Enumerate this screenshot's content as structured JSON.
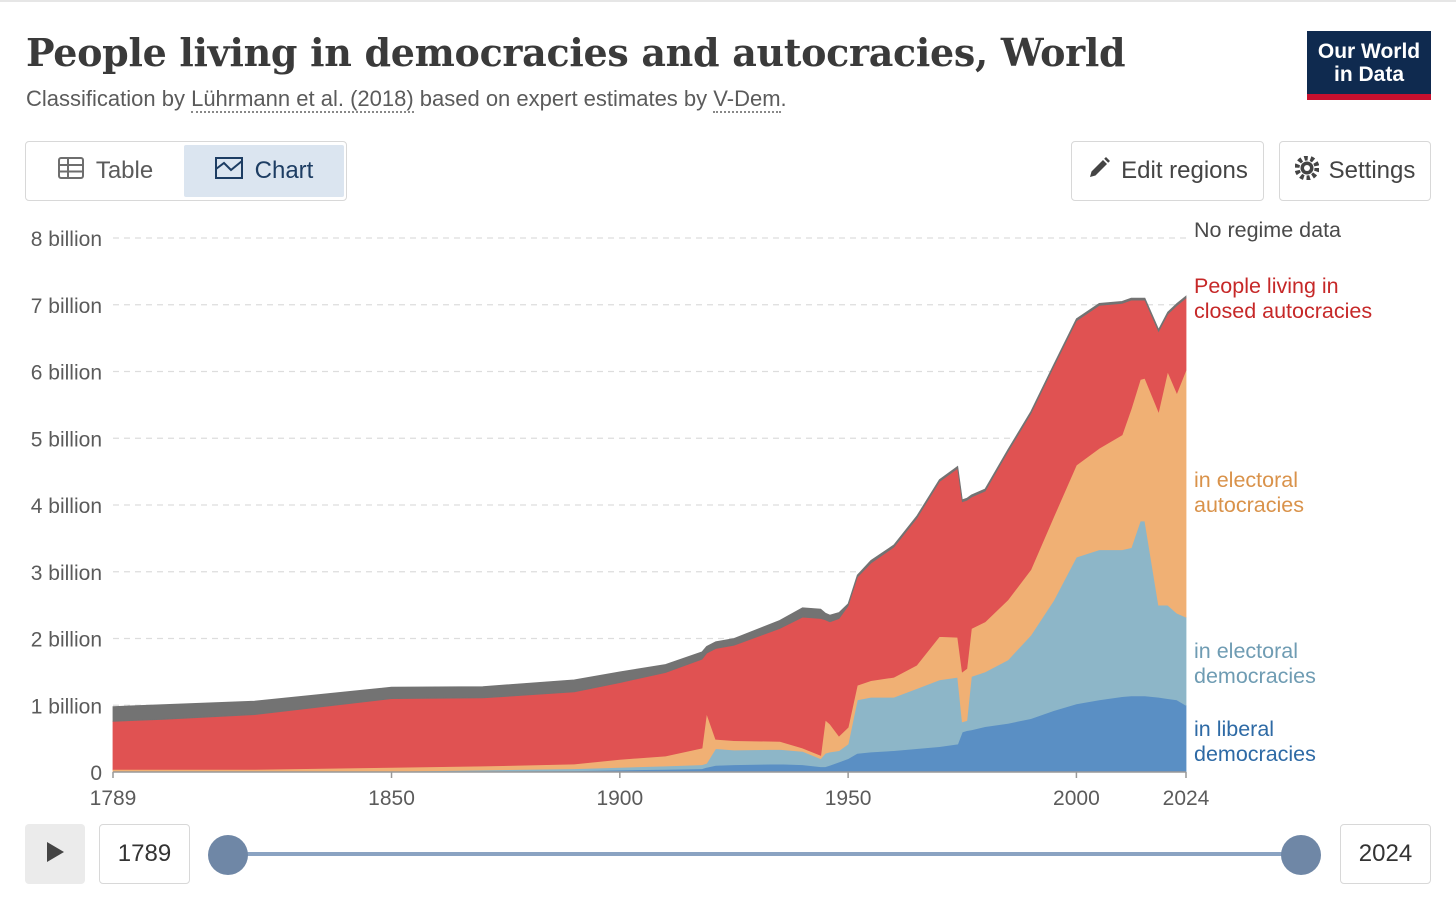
{
  "header": {
    "title": "People living in democracies and autocracies, World",
    "subtitle_prefix": "Classification by ",
    "subtitle_link1": "Lührmann et al. (2018)",
    "subtitle_middle": " based on expert estimates by ",
    "subtitle_link2": "V-Dem",
    "subtitle_suffix": ".",
    "logo_line1": "Our World",
    "logo_line2": "in Data"
  },
  "tabs": [
    {
      "label": "Table",
      "icon": "table-icon",
      "active": false
    },
    {
      "label": "Chart",
      "icon": "chart-icon",
      "active": true
    }
  ],
  "toolbar": {
    "edit_label": "Edit regions",
    "settings_label": "Settings"
  },
  "timeline": {
    "start_label": "1789",
    "end_label": "2024",
    "start_value": 1789,
    "end_value": 2024
  },
  "colors": {
    "liberal": "#5a8fc4",
    "electoral_dem": "#8db6c8",
    "electoral_aut": "#f0b074",
    "closed_aut": "#e05252",
    "no_data": "#737373",
    "brand": "#0f2a4f",
    "brand_accent": "#c8102e"
  },
  "chart_data": {
    "type": "area",
    "stacked": true,
    "xlabel": "",
    "ylabel": "",
    "xlim": [
      1789,
      2024
    ],
    "ylim": [
      0,
      8
    ],
    "y_unit": "billion",
    "grid": true,
    "legend_placement": "right (inline labels at series ends)",
    "x_ticks": [
      1789,
      1850,
      1900,
      1950,
      2000,
      2024
    ],
    "y_ticks": [
      {
        "value": 0,
        "label": "0"
      },
      {
        "value": 1,
        "label": "1 billion"
      },
      {
        "value": 2,
        "label": "2 billion"
      },
      {
        "value": 3,
        "label": "3 billion"
      },
      {
        "value": 4,
        "label": "4 billion"
      },
      {
        "value": 5,
        "label": "5 billion"
      },
      {
        "value": 6,
        "label": "6 billion"
      },
      {
        "value": 7,
        "label": "7 billion"
      },
      {
        "value": 8,
        "label": "8 billion"
      }
    ],
    "x": [
      1789,
      1800,
      1820,
      1850,
      1870,
      1890,
      1900,
      1910,
      1918,
      1919,
      1921,
      1925,
      1935,
      1940,
      1944,
      1945,
      1946,
      1948,
      1950,
      1952,
      1955,
      1960,
      1965,
      1970,
      1974,
      1975,
      1976,
      1977,
      1980,
      1985,
      1990,
      1995,
      2000,
      2005,
      2010,
      2012,
      2014,
      2015,
      2018,
      2020,
      2022,
      2024
    ],
    "series": [
      {
        "name": "in liberal democracies",
        "label_lines": [
          "in liberal",
          "democracies"
        ],
        "color_key": "liberal",
        "values": [
          0,
          0,
          0,
          0,
          0.01,
          0.02,
          0.03,
          0.04,
          0.05,
          0.07,
          0.1,
          0.11,
          0.12,
          0.11,
          0.08,
          0.08,
          0.1,
          0.15,
          0.2,
          0.28,
          0.3,
          0.32,
          0.35,
          0.38,
          0.42,
          0.6,
          0.62,
          0.63,
          0.68,
          0.73,
          0.8,
          0.92,
          1.02,
          1.08,
          1.13,
          1.14,
          1.14,
          1.14,
          1.12,
          1.1,
          1.08,
          1.0
        ]
      },
      {
        "name": "in electoral democracies",
        "label_lines": [
          "in electoral",
          "democracies"
        ],
        "color_key": "electoral_dem",
        "values": [
          0,
          0,
          0,
          0.01,
          0.02,
          0.03,
          0.04,
          0.05,
          0.06,
          0.06,
          0.25,
          0.22,
          0.22,
          0.2,
          0.12,
          0.2,
          0.2,
          0.17,
          0.22,
          0.8,
          0.82,
          0.8,
          0.9,
          1.0,
          1.0,
          0.15,
          0.15,
          0.8,
          0.82,
          0.95,
          1.25,
          1.65,
          2.2,
          2.25,
          2.2,
          2.22,
          2.62,
          2.62,
          1.38,
          1.4,
          1.3,
          1.32
        ]
      },
      {
        "name": "in electoral autocracies",
        "label_lines": [
          "in electoral",
          "autocracies"
        ],
        "color_key": "electoral_aut",
        "values": [
          0.04,
          0.04,
          0.04,
          0.06,
          0.06,
          0.07,
          0.12,
          0.15,
          0.25,
          0.75,
          0.14,
          0.14,
          0.12,
          0.05,
          0.05,
          0.5,
          0.42,
          0.22,
          0.25,
          0.22,
          0.25,
          0.3,
          0.35,
          0.65,
          0.6,
          0.75,
          0.78,
          0.72,
          0.75,
          0.9,
          0.98,
          1.25,
          1.38,
          1.52,
          1.72,
          2.08,
          2.12,
          2.14,
          2.9,
          3.5,
          3.3,
          3.7
        ]
      },
      {
        "name": "People living in closed autocracies",
        "label_lines": [
          "People living in",
          "closed autocracies"
        ],
        "color_key": "closed_aut",
        "values": [
          0.72,
          0.75,
          0.82,
          1.03,
          1.02,
          1.08,
          1.15,
          1.25,
          1.33,
          0.9,
          1.36,
          1.43,
          1.69,
          1.96,
          2.05,
          1.5,
          1.53,
          1.76,
          1.82,
          1.62,
          1.76,
          1.95,
          2.2,
          2.32,
          2.53,
          2.55,
          2.52,
          1.97,
          1.96,
          2.22,
          2.34,
          2.25,
          2.16,
          2.14,
          1.97,
          1.63,
          1.19,
          1.17,
          1.2,
          0.86,
          1.31,
          1.08
        ]
      },
      {
        "name": "No regime data",
        "label_lines": [
          "No regime data"
        ],
        "color_key": "no_data",
        "values": [
          0.22,
          0.22,
          0.2,
          0.17,
          0.17,
          0.18,
          0.16,
          0.12,
          0.11,
          0.1,
          0.1,
          0.1,
          0.12,
          0.14,
          0.14,
          0.1,
          0.1,
          0.09,
          0.03,
          0.03,
          0.04,
          0.03,
          0.03,
          0.03,
          0.03,
          0.03,
          0.03,
          0.03,
          0.03,
          0.03,
          0.03,
          0.03,
          0.03,
          0.03,
          0.03,
          0.03,
          0.03,
          0.03,
          0.03,
          0.03,
          0.03,
          0.03
        ]
      }
    ]
  }
}
